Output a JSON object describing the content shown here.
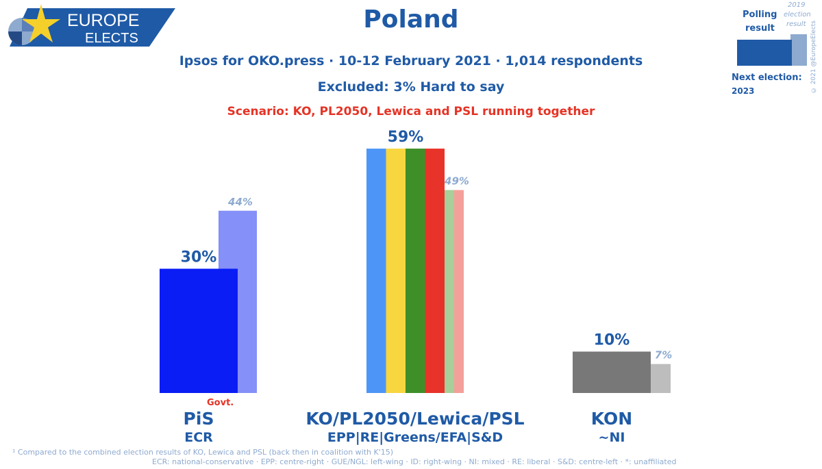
{
  "brand": {
    "line1": "EUROPE",
    "line2": "ELECTS",
    "colors": {
      "primary": "#1f5aa6",
      "star": "#f5d02a"
    }
  },
  "header": {
    "title": "Poland",
    "source_line": "Ipsos for OKO.press · 10-12 February 2021 · 1,014 respondents",
    "excluded_line": "Excluded: 3% Hard to say",
    "scenario_line": "Scenario: KO, PL2050, Lewica and PSL running together"
  },
  "legend": {
    "polling_label_1": "Polling",
    "polling_label_2": "result",
    "election_label_1": "2019",
    "election_label_2": "election",
    "election_label_3": "result",
    "next_election_label": "Next election:",
    "next_election_year": "2023",
    "credit": "© 2021 @EuropeElects"
  },
  "chart_data": {
    "type": "bar",
    "title": "Poland",
    "unit": "%",
    "ylim": [
      0,
      60
    ],
    "grid": false,
    "parties": [
      {
        "name": "PiS",
        "group": "ECR",
        "poll": 30,
        "poll_label": "30%",
        "prev": 44,
        "prev_label": "44%",
        "poll_colors": [
          "#0a1df5"
        ],
        "prev_colors": [
          "#8590f8"
        ],
        "note": "Govt."
      },
      {
        "name": "KO/PL2050/Lewica/PSL",
        "group": "EPP|RE|Greens/EFA|S&D",
        "poll": 59,
        "poll_label": "59%",
        "prev": 49,
        "prev_label": "49%",
        "poll_colors": [
          "#4d96f7",
          "#f8d640",
          "#3f8f29",
          "#e8332a"
        ],
        "prev_colors": [
          "#a6cf9a",
          "#f4a09a"
        ],
        "note": ""
      },
      {
        "name": "KON",
        "group": "~NI",
        "poll": 10,
        "poll_label": "10%",
        "prev": 7,
        "prev_label": "7%",
        "poll_colors": [
          "#787878"
        ],
        "prev_colors": [
          "#bdbdbd"
        ],
        "note": ""
      }
    ]
  },
  "footer": {
    "note1": "¹ Compared to the combined election results of KO, Lewica and PSL (back then in coalition with K'15)",
    "note2": "ECR: national-conservative · EPP: centre-right · GUE/NGL: left-wing · ID: right-wing · NI: mixed · RE: liberal · S&D: centre-left · *: unaffiliated"
  }
}
